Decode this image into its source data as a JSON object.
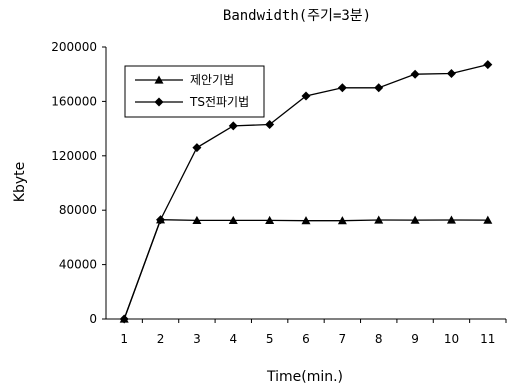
{
  "chart_data": {
    "type": "line",
    "title": "Bandwidth(주기=3분)",
    "xlabel": "Time(min.)",
    "ylabel": "Kbyte",
    "categories": [
      "1",
      "2",
      "3",
      "4",
      "5",
      "6",
      "7",
      "8",
      "9",
      "10",
      "11"
    ],
    "ylim": [
      0,
      200000
    ],
    "y_ticks": [
      "0",
      "40000",
      "80000",
      "120000",
      "160000",
      "200000"
    ],
    "grid": false,
    "legend_position": "top-left",
    "series": [
      {
        "name": "제안기법",
        "marker": "triangle",
        "color": "#000000",
        "values": [
          0,
          73000,
          72500,
          72500,
          72500,
          72300,
          72300,
          72800,
          72700,
          72800,
          72700
        ]
      },
      {
        "name": "TS전파기법",
        "marker": "diamond",
        "color": "#000000",
        "values": [
          0,
          73000,
          126000,
          142000,
          143000,
          164000,
          170000,
          170000,
          180000,
          180500,
          187000
        ]
      }
    ]
  }
}
